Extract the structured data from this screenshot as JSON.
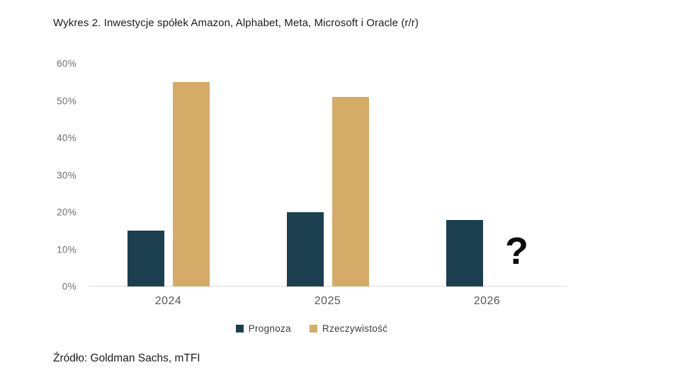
{
  "title": "Wykres 2. Inwestycje spółek Amazon, Alphabet, Meta, Microsoft i Oracle (r/r)",
  "source": "Źródło: Goldman Sachs, mTFI",
  "colors": {
    "prognoza": "#1c3f50",
    "rzeczywistosc": "#d4ac68",
    "axis_line": "#d8d8d8",
    "y_tick_label": "#6f6f6f",
    "x_tick_label": "#585858",
    "missing_mark": "#0d0d0d"
  },
  "legend": {
    "items": [
      {
        "label": "Prognoza",
        "color": "#1c3f50"
      },
      {
        "label": "Rzeczywistość",
        "color": "#d4ac68"
      }
    ]
  },
  "chart_data": {
    "type": "bar",
    "title": "Wykres 2. Inwestycje spółek Amazon, Alphabet, Meta, Microsoft i Oracle (r/r)",
    "categories": [
      "2024",
      "2025",
      "2026"
    ],
    "series": [
      {
        "name": "Prognoza",
        "color": "#1c3f50",
        "values": [
          15,
          20,
          18
        ]
      },
      {
        "name": "Rzeczywistość",
        "color": "#d4ac68",
        "values": [
          55,
          51,
          null
        ]
      }
    ],
    "missing_value_annotation": "?",
    "xlabel": "",
    "ylabel": "",
    "ylim": [
      0,
      60
    ],
    "yticks": [
      0,
      10,
      20,
      30,
      40,
      50,
      60
    ],
    "ytick_suffix": "%",
    "grid": false,
    "legend_position": "bottom",
    "source": "Źródło: Goldman Sachs, mTFI"
  }
}
